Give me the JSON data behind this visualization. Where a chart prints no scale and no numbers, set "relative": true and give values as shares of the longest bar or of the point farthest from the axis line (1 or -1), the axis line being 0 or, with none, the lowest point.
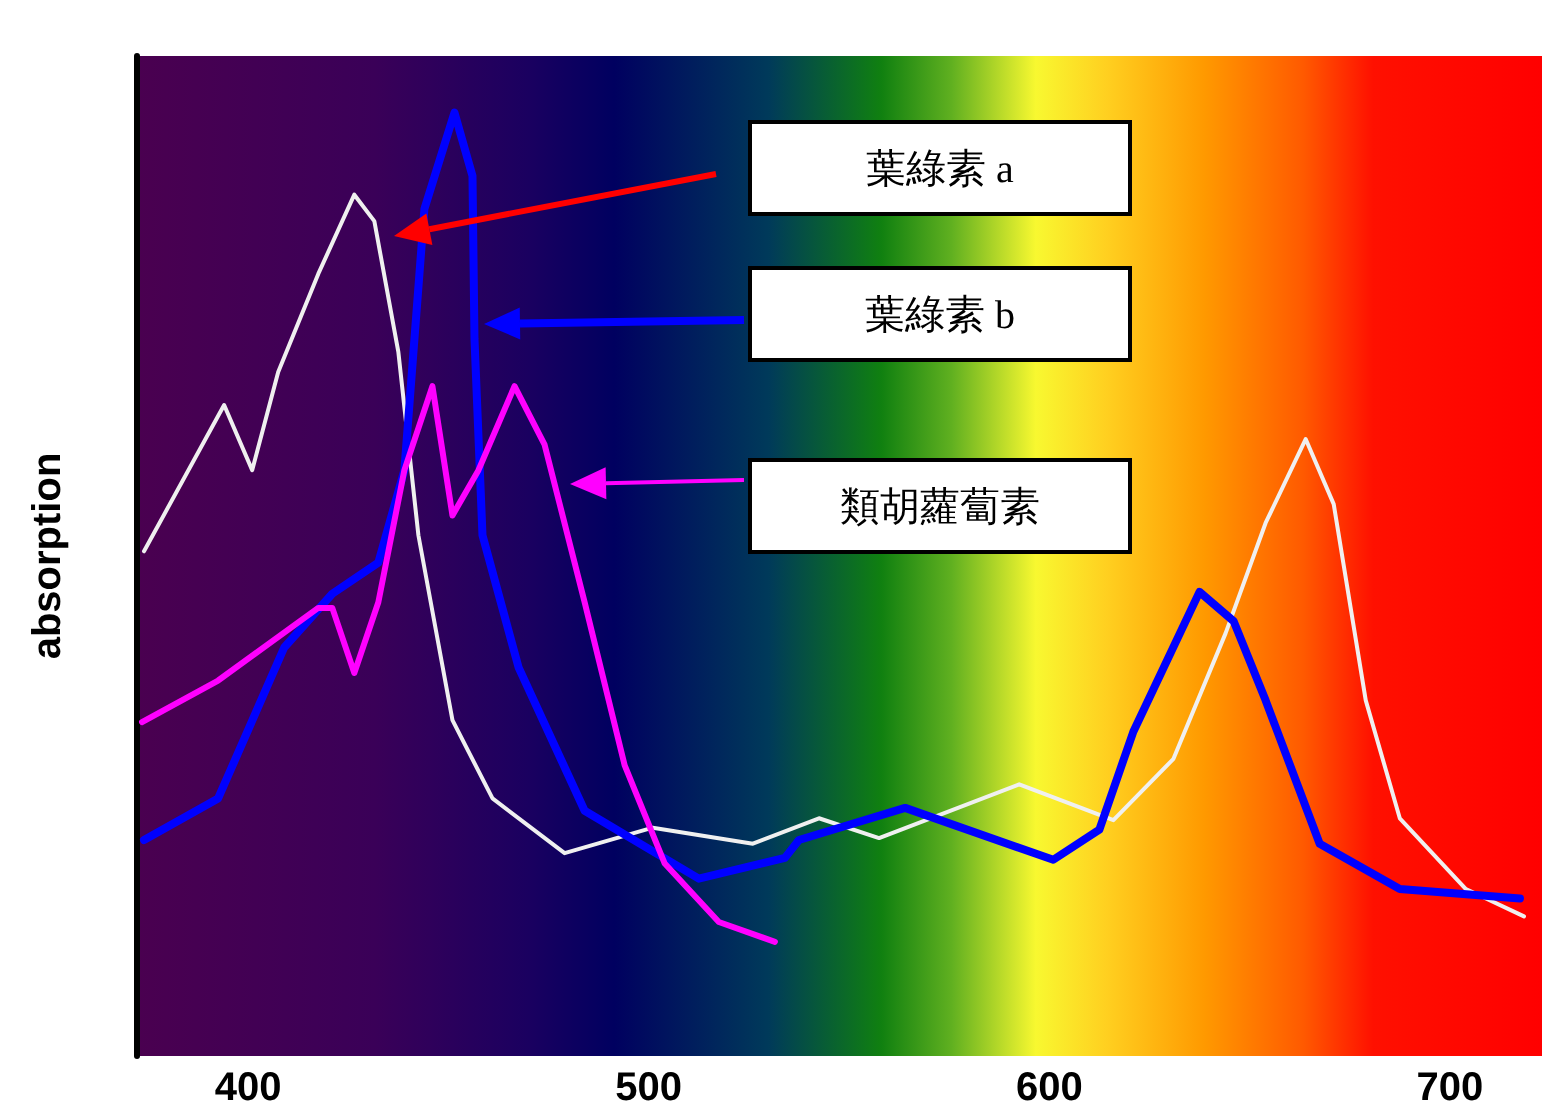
{
  "chart_data": {
    "type": "line",
    "ylabel": "absorption",
    "relative": true,
    "xlim": [
      372,
      723
    ],
    "xticks": [
      400,
      500,
      600,
      700
    ],
    "grid": false,
    "marker": "none",
    "line_style": "solid",
    "series": [
      {
        "color": "#f0f0f0",
        "x": [
          374,
          394,
          401,
          407.5,
          417.5,
          426.5,
          431.5,
          437.5,
          442.5,
          451,
          461,
          479,
          501,
          526,
          542.5,
          557.5,
          592.5,
          616,
          631,
          644,
          654,
          664,
          671,
          679,
          687.5,
          704,
          718.5
        ],
        "values": [
          0.535,
          0.69,
          0.621,
          0.725,
          0.829,
          0.913,
          0.885,
          0.746,
          0.552,
          0.356,
          0.273,
          0.215,
          0.242,
          0.225,
          0.252,
          0.231,
          0.288,
          0.25,
          0.315,
          0.448,
          0.565,
          0.654,
          0.585,
          0.377,
          0.252,
          0.177,
          0.148
        ]
      },
      {
        "color": "#0000ff",
        "x": [
          374,
          392.5,
          409,
          421,
          432.5,
          439,
          444,
          451.5,
          456,
          456.5,
          458.5,
          467.5,
          484,
          512.5,
          534,
          537.5,
          564,
          601,
          612.5,
          621,
          637.5,
          646,
          654,
          667.5,
          687.5,
          717.5
        ],
        "values": [
          0.229,
          0.273,
          0.433,
          0.49,
          0.523,
          0.621,
          0.898,
          1,
          0.933,
          0.76,
          0.552,
          0.412,
          0.26,
          0.188,
          0.21,
          0.229,
          0.263,
          0.208,
          0.24,
          0.344,
          0.492,
          0.461,
          0.377,
          0.225,
          0.177,
          0.167
        ]
      },
      {
        "color": "#ff00ff",
        "x": [
          373.5,
          392.5,
          417.5,
          421,
          426.5,
          432.5,
          439,
          446,
          451,
          457.5,
          466.5,
          474,
          484,
          494,
          504,
          517.5,
          531.5
        ],
        "values": [
          0.354,
          0.398,
          0.475,
          0.475,
          0.406,
          0.481,
          0.621,
          0.71,
          0.573,
          0.621,
          0.71,
          0.648,
          0.481,
          0.308,
          0.204,
          0.142,
          0.121
        ]
      }
    ],
    "annotations": [
      "葉綠素 a",
      "葉綠素 b",
      "類胡蘿蔔素"
    ]
  }
}
